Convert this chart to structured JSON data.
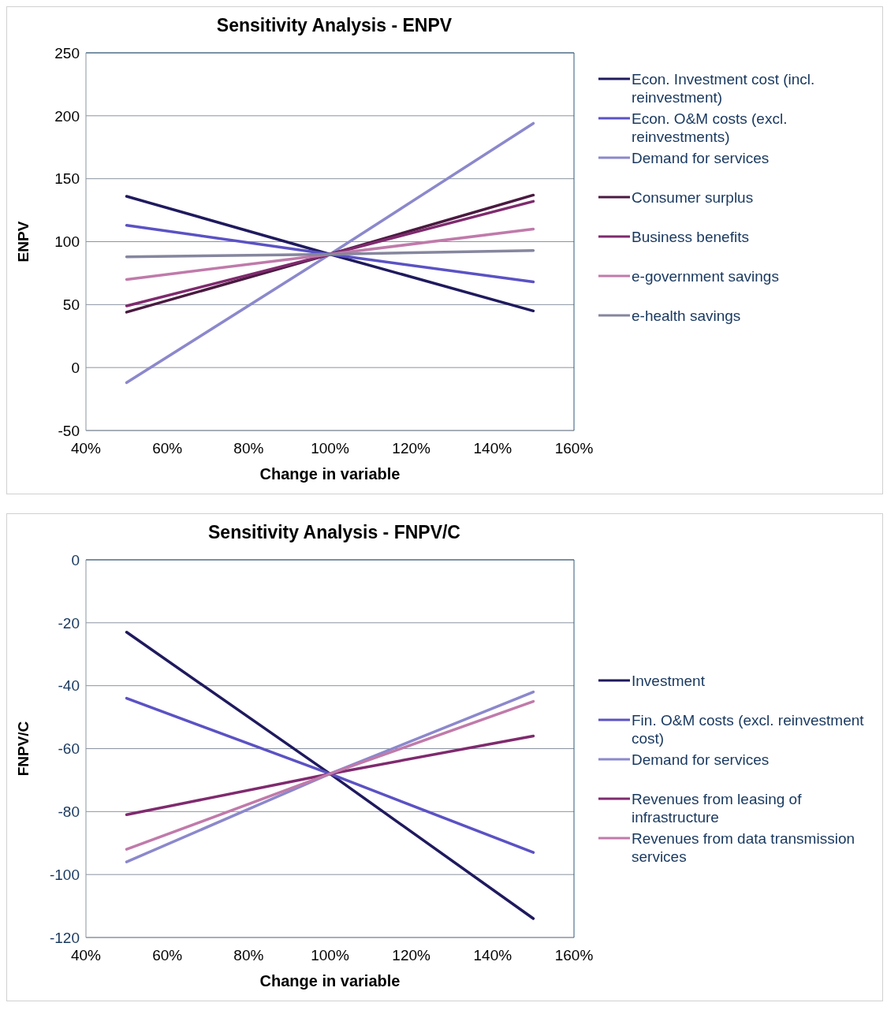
{
  "chart_data": [
    {
      "type": "line",
      "title": "Sensitivity Analysis  - ENPV",
      "xlabel": "Change in variable",
      "ylabel": "ENPV",
      "x": [
        50,
        100,
        150
      ],
      "xlim": [
        40,
        160
      ],
      "xticks": [
        {
          "value": 40,
          "label": "40%"
        },
        {
          "value": 60,
          "label": "60%"
        },
        {
          "value": 80,
          "label": "80%"
        },
        {
          "value": 100,
          "label": "100%"
        },
        {
          "value": 120,
          "label": "120%"
        },
        {
          "value": 140,
          "label": "140%"
        },
        {
          "value": 160,
          "label": "160%"
        }
      ],
      "ylim": [
        -50,
        250
      ],
      "yticks": [
        -50,
        0,
        50,
        100,
        150,
        200,
        250
      ],
      "grid": "y",
      "legend": "right",
      "marker": "none",
      "line_style": "solid",
      "series": [
        {
          "name": "Econ. Investment cost (incl. reinvestment)",
          "color": "#1f1a5e",
          "values": [
            136,
            90,
            45
          ]
        },
        {
          "name": "Econ. O&M costs (excl. reinvestments)",
          "color": "#5b52c4",
          "values": [
            113,
            90,
            68
          ]
        },
        {
          "name": "Demand for services",
          "color": "#8b88cc",
          "values": [
            -12,
            90,
            194
          ]
        },
        {
          "name": "Consumer surplus",
          "color": "#4a1a40",
          "values": [
            44,
            90,
            137
          ]
        },
        {
          "name": "Business benefits",
          "color": "#7f2a6e",
          "values": [
            49,
            90,
            132
          ]
        },
        {
          "name": "e-government savings",
          "color": "#c07aaa",
          "values": [
            70,
            90,
            110
          ]
        },
        {
          "name": "e-health savings",
          "color": "#85869e",
          "values": [
            88,
            90,
            93
          ]
        }
      ]
    },
    {
      "type": "line",
      "title": "Sensitivity Analysis  - FNPV/C",
      "xlabel": "Change in variable",
      "ylabel": "FNPV/C",
      "x": [
        50,
        100,
        150
      ],
      "xlim": [
        40,
        160
      ],
      "xticks": [
        {
          "value": 40,
          "label": "40%"
        },
        {
          "value": 60,
          "label": "60%"
        },
        {
          "value": 80,
          "label": "80%"
        },
        {
          "value": 100,
          "label": "100%"
        },
        {
          "value": 120,
          "label": "120%"
        },
        {
          "value": 140,
          "label": "140%"
        },
        {
          "value": 160,
          "label": "160%"
        }
      ],
      "ylim": [
        -120,
        0
      ],
      "yticks": [
        -120,
        -100,
        -80,
        -60,
        -40,
        -20,
        0
      ],
      "grid": "y",
      "legend": "right",
      "marker": "none",
      "line_style": "solid",
      "series": [
        {
          "name": "Investment",
          "color": "#1f1a5e",
          "values": [
            -23,
            -68,
            -114
          ]
        },
        {
          "name": "Fin. O&M costs (excl. reinvestment cost)",
          "color": "#5b52c4",
          "values": [
            -44,
            -68,
            -93
          ]
        },
        {
          "name": "Demand for services",
          "color": "#8b88cc",
          "values": [
            -96,
            -68,
            -42
          ]
        },
        {
          "name": "Revenues from leasing of infrastructure",
          "color": "#7f2a6e",
          "values": [
            -81,
            -68,
            -56
          ]
        },
        {
          "name": "Revenues from data transmission services",
          "color": "#c07aaa",
          "values": [
            -92,
            -68,
            -45
          ]
        }
      ]
    }
  ]
}
